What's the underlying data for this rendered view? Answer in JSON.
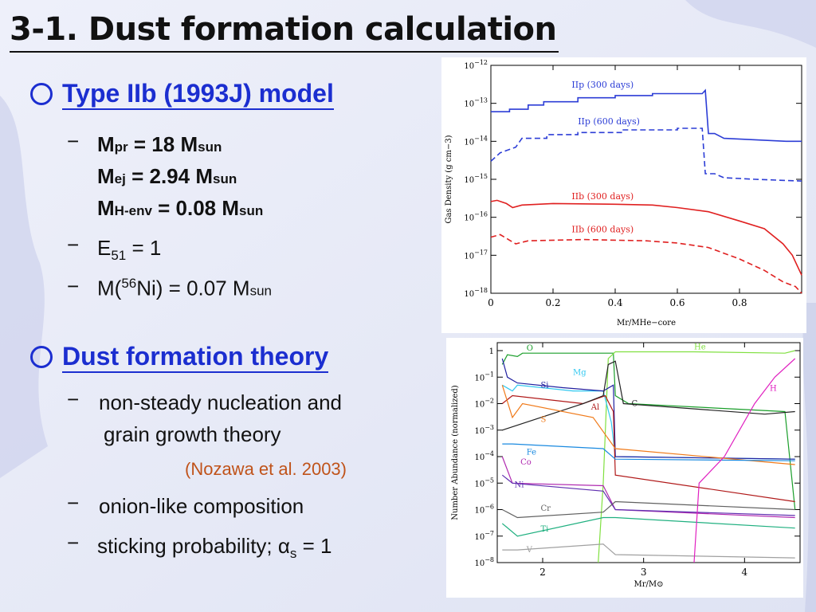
{
  "slide": {
    "title": "3-1. Dust formation calculation",
    "sections": [
      {
        "heading": "Type IIb (1993J) model"
      },
      {
        "heading": "Dust formation theory"
      }
    ],
    "model": {
      "mpr": {
        "label_main": "M",
        "label_sub": "pr",
        "eq": " = 18 M",
        "unit_sub": "sun"
      },
      "mej": {
        "label_main": "M",
        "label_sub": "ej",
        "eq": " = 2.94 M",
        "unit_sub": "sun"
      },
      "menv": {
        "label_main": "M",
        "label_sub": "H-env",
        "eq": " = 0.08 M",
        "unit_sub": "sun"
      },
      "e51": {
        "main": "E",
        "sub": "51",
        "eq": " = 1"
      },
      "ni": {
        "pre": "M(",
        "sup": "56",
        "mid": "Ni) = 0.07 M",
        "sub": "sun"
      }
    },
    "theory": {
      "line1": "non-steady nucleation and",
      "line2": "grain growth theory",
      "cite": "(Nozawa et al. 2003)",
      "onion": "onion-like composition",
      "stick_pre": "sticking probability; α",
      "stick_sub": "s",
      "stick_post": " = 1"
    },
    "dash": "−"
  },
  "chart_data": [
    {
      "type": "line",
      "xlabel": "Mr/MHe−core",
      "ylabel": "Gas Density (g cm−3)",
      "ylog": true,
      "xlim": [
        0,
        1.0
      ],
      "ylim": [
        1e-18,
        1e-12
      ],
      "xticks": [
        "0",
        "0.2",
        "0.4",
        "0.6",
        "0.8"
      ],
      "yticks": [
        "10−12",
        "10−13",
        "10−14",
        "10−15",
        "10−16",
        "10−17",
        "10−18"
      ],
      "series": [
        {
          "name": "IIp (300 days)",
          "color": "#2c3dd6",
          "dash": false,
          "points": [
            [
              0,
              6e-14
            ],
            [
              0.06,
              6e-14
            ],
            [
              0.06,
              7e-14
            ],
            [
              0.12,
              7e-14
            ],
            [
              0.12,
              9e-14
            ],
            [
              0.17,
              9e-14
            ],
            [
              0.17,
              1.1e-13
            ],
            [
              0.28,
              1.1e-13
            ],
            [
              0.28,
              1.4e-13
            ],
            [
              0.4,
              1.4e-13
            ],
            [
              0.4,
              1.6e-13
            ],
            [
              0.52,
              1.6e-13
            ],
            [
              0.52,
              1.8e-13
            ],
            [
              0.68,
              1.8e-13
            ],
            [
              0.69,
              2.2e-13
            ],
            [
              0.7,
              1.6e-14
            ],
            [
              0.72,
              1.6e-14
            ],
            [
              0.75,
              1.2e-14
            ],
            [
              0.85,
              1.1e-14
            ],
            [
              0.95,
              1e-14
            ],
            [
              1.0,
              1e-14
            ]
          ]
        },
        {
          "name": "IIp (600 days)",
          "color": "#2c3dd6",
          "dash": true,
          "points": [
            [
              0,
              3e-15
            ],
            [
              0.03,
              5e-15
            ],
            [
              0.08,
              7e-15
            ],
            [
              0.1,
              1.2e-14
            ],
            [
              0.18,
              1.2e-14
            ],
            [
              0.18,
              1.5e-14
            ],
            [
              0.28,
              1.5e-14
            ],
            [
              0.28,
              1.7e-14
            ],
            [
              0.42,
              1.7e-14
            ],
            [
              0.42,
              2e-14
            ],
            [
              0.6,
              2e-14
            ],
            [
              0.6,
              2.2e-14
            ],
            [
              0.68,
              2.2e-14
            ],
            [
              0.69,
              1.4e-15
            ],
            [
              0.72,
              1.4e-15
            ],
            [
              0.75,
              1.1e-15
            ],
            [
              0.85,
              1e-15
            ],
            [
              1.0,
              9e-16
            ]
          ]
        },
        {
          "name": "IIb (300 days)",
          "color": "#e02020",
          "dash": false,
          "points": [
            [
              0,
              2.6e-16
            ],
            [
              0.02,
              2.8e-16
            ],
            [
              0.05,
              2.3e-16
            ],
            [
              0.07,
              1.8e-16
            ],
            [
              0.1,
              2.1e-16
            ],
            [
              0.2,
              2.3e-16
            ],
            [
              0.4,
              2.2e-16
            ],
            [
              0.52,
              2.1e-16
            ],
            [
              0.6,
              1.8e-16
            ],
            [
              0.7,
              1.4e-16
            ],
            [
              0.8,
              8e-17
            ],
            [
              0.88,
              5e-17
            ],
            [
              0.94,
              2e-17
            ],
            [
              0.97,
              1e-17
            ],
            [
              1.0,
              3e-18
            ]
          ]
        },
        {
          "name": "IIb (600 days)",
          "color": "#e02020",
          "dash": true,
          "points": [
            [
              0,
              3e-17
            ],
            [
              0.03,
              3.5e-17
            ],
            [
              0.06,
              2.5e-17
            ],
            [
              0.08,
              2e-17
            ],
            [
              0.12,
              2.4e-17
            ],
            [
              0.3,
              2.6e-17
            ],
            [
              0.5,
              2.4e-17
            ],
            [
              0.6,
              2.1e-17
            ],
            [
              0.7,
              1.6e-17
            ],
            [
              0.8,
              8e-18
            ],
            [
              0.88,
              4e-18
            ],
            [
              0.94,
              2e-18
            ],
            [
              0.98,
              1.5e-18
            ],
            [
              1.0,
              1e-18
            ]
          ]
        }
      ]
    },
    {
      "type": "line",
      "xlabel": "Mr/M⊙",
      "ylabel": "Number Abundance (normalized)",
      "ylog": true,
      "xlim": [
        1.55,
        4.55
      ],
      "ylim": [
        1e-08,
        2
      ],
      "xticks": [
        "2",
        "3",
        "4"
      ],
      "yticks": [
        "1",
        "10−1",
        "10−2",
        "10−3",
        "10−4",
        "10−5",
        "10−6",
        "10−7",
        "10−8"
      ],
      "series": [
        {
          "name": "O",
          "color": "#1a9e2a",
          "points": [
            [
              1.6,
              0.3
            ],
            [
              1.65,
              0.7
            ],
            [
              1.75,
              0.6
            ],
            [
              1.8,
              0.8
            ],
            [
              2.7,
              0.8
            ],
            [
              2.72,
              0.02
            ],
            [
              2.85,
              0.01
            ],
            [
              4.4,
              0.005
            ],
            [
              4.5,
              1e-06
            ]
          ]
        },
        {
          "name": "He",
          "color": "#80e040",
          "points": [
            [
              2.55,
              1e-08
            ],
            [
              2.6,
              1e-05
            ],
            [
              2.65,
              0.5
            ],
            [
              2.72,
              0.9
            ],
            [
              3.5,
              0.9
            ],
            [
              4.4,
              0.8
            ],
            [
              4.5,
              1
            ]
          ]
        },
        {
          "name": "Mg",
          "color": "#30c8f0",
          "points": [
            [
              1.6,
              0.05
            ],
            [
              1.7,
              0.03
            ],
            [
              1.75,
              0.05
            ],
            [
              2.3,
              0.03
            ],
            [
              2.6,
              0.03
            ],
            [
              2.68,
              0.002
            ],
            [
              2.72,
              0.0001
            ],
            [
              4.5,
              8e-05
            ]
          ]
        },
        {
          "name": "Si",
          "color": "#2020a0",
          "points": [
            [
              1.6,
              0.5
            ],
            [
              1.65,
              0.1
            ],
            [
              1.75,
              0.06
            ],
            [
              2.2,
              0.04
            ],
            [
              2.6,
              0.03
            ],
            [
              2.7,
              0.05
            ],
            [
              2.72,
              0.0001
            ],
            [
              4.5,
              8e-05
            ]
          ]
        },
        {
          "name": "Al",
          "color": "#b01818",
          "points": [
            [
              1.6,
              0.01
            ],
            [
              1.7,
              0.02
            ],
            [
              2.4,
              0.01
            ],
            [
              2.62,
              0.02
            ],
            [
              2.7,
              0.005
            ],
            [
              2.72,
              2e-05
            ],
            [
              4.5,
              2e-06
            ]
          ]
        },
        {
          "name": "C",
          "color": "#222222",
          "points": [
            [
              1.6,
              0.001
            ],
            [
              2.4,
              0.01
            ],
            [
              2.6,
              0.02
            ],
            [
              2.65,
              0.3
            ],
            [
              2.72,
              0.4
            ],
            [
              2.8,
              0.01
            ],
            [
              4.2,
              0.004
            ],
            [
              4.5,
              0.005
            ]
          ]
        },
        {
          "name": "S",
          "color": "#f07a1a",
          "points": [
            [
              1.6,
              0.05
            ],
            [
              1.7,
              0.003
            ],
            [
              1.8,
              0.01
            ],
            [
              2.5,
              0.003
            ],
            [
              2.72,
              0.0002
            ],
            [
              4.5,
              5e-05
            ]
          ]
        },
        {
          "name": "Fe",
          "color": "#1a8ae0",
          "points": [
            [
              1.6,
              0.0003
            ],
            [
              1.7,
              0.0003
            ],
            [
              2.6,
              0.0002
            ],
            [
              2.72,
              8e-05
            ],
            [
              4.5,
              7e-05
            ]
          ]
        },
        {
          "name": "Co",
          "color": "#b02ab0",
          "points": [
            [
              1.6,
              0.0001
            ],
            [
              1.7,
              1e-05
            ],
            [
              2.6,
              8e-06
            ],
            [
              2.72,
              1e-06
            ],
            [
              4.5,
              5e-07
            ]
          ]
        },
        {
          "name": "Ni",
          "color": "#6030b0",
          "points": [
            [
              1.6,
              2e-05
            ],
            [
              1.7,
              1e-05
            ],
            [
              2.6,
              5e-06
            ],
            [
              2.72,
              1e-06
            ],
            [
              4.5,
              6e-07
            ]
          ]
        },
        {
          "name": "Cr",
          "color": "#606060",
          "points": [
            [
              1.6,
              1e-06
            ],
            [
              1.75,
              5e-07
            ],
            [
              2.6,
              8e-07
            ],
            [
              2.72,
              2e-06
            ],
            [
              4.5,
              1e-06
            ]
          ]
        },
        {
          "name": "Ti",
          "color": "#20b080",
          "points": [
            [
              1.6,
              3e-07
            ],
            [
              1.75,
              1e-07
            ],
            [
              2.6,
              5e-07
            ],
            [
              2.72,
              5e-07
            ],
            [
              4.5,
              2e-07
            ]
          ]
        },
        {
          "name": "V",
          "color": "#a0a0a0",
          "points": [
            [
              1.6,
              3e-08
            ],
            [
              1.75,
              3e-08
            ],
            [
              2.6,
              5e-08
            ],
            [
              2.72,
              2e-08
            ],
            [
              4.5,
              1.5e-08
            ]
          ]
        },
        {
          "name": "H",
          "color": "#e020c0",
          "points": [
            [
              3.5,
              1e-08
            ],
            [
              3.55,
              1e-05
            ],
            [
              3.8,
              0.0001
            ],
            [
              4.1,
              0.01
            ],
            [
              4.3,
              0.1
            ],
            [
              4.5,
              0.5
            ]
          ]
        }
      ]
    }
  ]
}
